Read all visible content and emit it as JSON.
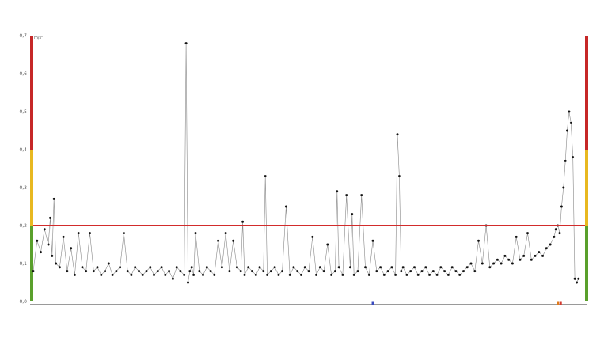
{
  "chart_data": {
    "type": "line",
    "title": "",
    "xlabel": "",
    "ylabel": "",
    "unit": "m/s²",
    "ylim": [
      0,
      0.7
    ],
    "yticks": [
      "0,0",
      "0,1",
      "0,2",
      "0,3",
      "0,4",
      "0,5",
      "0,6",
      "0,7"
    ],
    "grid": false,
    "legend": "none",
    "threshold": {
      "value": 0.2,
      "color": "#d22c2c"
    },
    "zones": [
      {
        "from": 0,
        "to": 0.2,
        "color": "#5aa02c"
      },
      {
        "from": 0.2,
        "to": 0.4,
        "color": "#e8b820"
      },
      {
        "from": 0.4,
        "to": 0.7,
        "color": "#c62828"
      }
    ],
    "series": [
      {
        "color": "#111111",
        "line_color": "#888888",
        "points": [
          [
            0,
            0.08
          ],
          [
            2,
            0.16
          ],
          [
            4,
            0.13
          ],
          [
            6,
            0.19
          ],
          [
            8,
            0.15
          ],
          [
            9,
            0.22
          ],
          [
            10,
            0.12
          ],
          [
            11,
            0.27
          ],
          [
            12,
            0.1
          ],
          [
            14,
            0.09
          ],
          [
            16,
            0.17
          ],
          [
            18,
            0.08
          ],
          [
            20,
            0.14
          ],
          [
            22,
            0.07
          ],
          [
            24,
            0.18
          ],
          [
            26,
            0.09
          ],
          [
            28,
            0.08
          ],
          [
            30,
            0.18
          ],
          [
            32,
            0.08
          ],
          [
            34,
            0.09
          ],
          [
            36,
            0.07
          ],
          [
            38,
            0.08
          ],
          [
            40,
            0.1
          ],
          [
            42,
            0.07
          ],
          [
            44,
            0.08
          ],
          [
            46,
            0.09
          ],
          [
            48,
            0.18
          ],
          [
            50,
            0.08
          ],
          [
            52,
            0.07
          ],
          [
            54,
            0.09
          ],
          [
            56,
            0.08
          ],
          [
            58,
            0.07
          ],
          [
            60,
            0.08
          ],
          [
            62,
            0.09
          ],
          [
            64,
            0.07
          ],
          [
            66,
            0.08
          ],
          [
            68,
            0.09
          ],
          [
            70,
            0.07
          ],
          [
            72,
            0.08
          ],
          [
            74,
            0.06
          ],
          [
            76,
            0.09
          ],
          [
            78,
            0.08
          ],
          [
            80,
            0.07
          ],
          [
            81,
            0.68
          ],
          [
            82,
            0.05
          ],
          [
            83,
            0.08
          ],
          [
            84,
            0.09
          ],
          [
            85,
            0.07
          ],
          [
            86,
            0.18
          ],
          [
            88,
            0.08
          ],
          [
            90,
            0.07
          ],
          [
            92,
            0.09
          ],
          [
            94,
            0.08
          ],
          [
            96,
            0.07
          ],
          [
            98,
            0.16
          ],
          [
            100,
            0.09
          ],
          [
            102,
            0.18
          ],
          [
            104,
            0.08
          ],
          [
            106,
            0.16
          ],
          [
            108,
            0.09
          ],
          [
            110,
            0.08
          ],
          [
            111,
            0.21
          ],
          [
            112,
            0.07
          ],
          [
            114,
            0.09
          ],
          [
            116,
            0.08
          ],
          [
            118,
            0.07
          ],
          [
            120,
            0.09
          ],
          [
            122,
            0.08
          ],
          [
            123,
            0.33
          ],
          [
            124,
            0.07
          ],
          [
            126,
            0.08
          ],
          [
            128,
            0.09
          ],
          [
            130,
            0.07
          ],
          [
            132,
            0.08
          ],
          [
            134,
            0.25
          ],
          [
            136,
            0.07
          ],
          [
            138,
            0.09
          ],
          [
            140,
            0.08
          ],
          [
            142,
            0.07
          ],
          [
            144,
            0.09
          ],
          [
            146,
            0.08
          ],
          [
            148,
            0.17
          ],
          [
            150,
            0.07
          ],
          [
            152,
            0.09
          ],
          [
            154,
            0.08
          ],
          [
            156,
            0.15
          ],
          [
            158,
            0.07
          ],
          [
            160,
            0.08
          ],
          [
            161,
            0.29
          ],
          [
            162,
            0.09
          ],
          [
            164,
            0.07
          ],
          [
            166,
            0.28
          ],
          [
            168,
            0.09
          ],
          [
            169,
            0.23
          ],
          [
            170,
            0.07
          ],
          [
            172,
            0.08
          ],
          [
            174,
            0.28
          ],
          [
            176,
            0.09
          ],
          [
            178,
            0.07
          ],
          [
            180,
            0.16
          ],
          [
            182,
            0.08
          ],
          [
            184,
            0.09
          ],
          [
            186,
            0.07
          ],
          [
            188,
            0.08
          ],
          [
            190,
            0.09
          ],
          [
            192,
            0.07
          ],
          [
            193,
            0.44
          ],
          [
            194,
            0.33
          ],
          [
            195,
            0.08
          ],
          [
            196,
            0.09
          ],
          [
            198,
            0.07
          ],
          [
            200,
            0.08
          ],
          [
            202,
            0.09
          ],
          [
            204,
            0.07
          ],
          [
            206,
            0.08
          ],
          [
            208,
            0.09
          ],
          [
            210,
            0.07
          ],
          [
            212,
            0.08
          ],
          [
            214,
            0.07
          ],
          [
            216,
            0.09
          ],
          [
            218,
            0.08
          ],
          [
            220,
            0.07
          ],
          [
            222,
            0.09
          ],
          [
            224,
            0.08
          ],
          [
            226,
            0.07
          ],
          [
            228,
            0.08
          ],
          [
            230,
            0.09
          ],
          [
            232,
            0.1
          ],
          [
            234,
            0.08
          ],
          [
            236,
            0.16
          ],
          [
            238,
            0.1
          ],
          [
            240,
            0.2
          ],
          [
            242,
            0.09
          ],
          [
            244,
            0.1
          ],
          [
            246,
            0.11
          ],
          [
            248,
            0.1
          ],
          [
            250,
            0.12
          ],
          [
            252,
            0.11
          ],
          [
            254,
            0.1
          ],
          [
            256,
            0.17
          ],
          [
            258,
            0.11
          ],
          [
            260,
            0.12
          ],
          [
            262,
            0.18
          ],
          [
            264,
            0.11
          ],
          [
            266,
            0.12
          ],
          [
            268,
            0.13
          ],
          [
            270,
            0.12
          ],
          [
            272,
            0.14
          ],
          [
            274,
            0.15
          ],
          [
            276,
            0.17
          ],
          [
            277,
            0.19
          ],
          [
            278,
            0.2
          ],
          [
            279,
            0.18
          ],
          [
            280,
            0.25
          ],
          [
            281,
            0.3
          ],
          [
            282,
            0.37
          ],
          [
            283,
            0.45
          ],
          [
            284,
            0.5
          ],
          [
            285,
            0.47
          ],
          [
            286,
            0.38
          ],
          [
            287,
            0.06
          ],
          [
            288,
            0.05
          ],
          [
            289,
            0.06
          ]
        ]
      }
    ],
    "xlim": [
      0,
      292
    ],
    "markers": [
      {
        "x": 180,
        "color": "#3b4cc0"
      },
      {
        "x": 278,
        "color": "#e07b1a"
      },
      {
        "x": 279.5,
        "color": "#d43a2f"
      }
    ]
  }
}
